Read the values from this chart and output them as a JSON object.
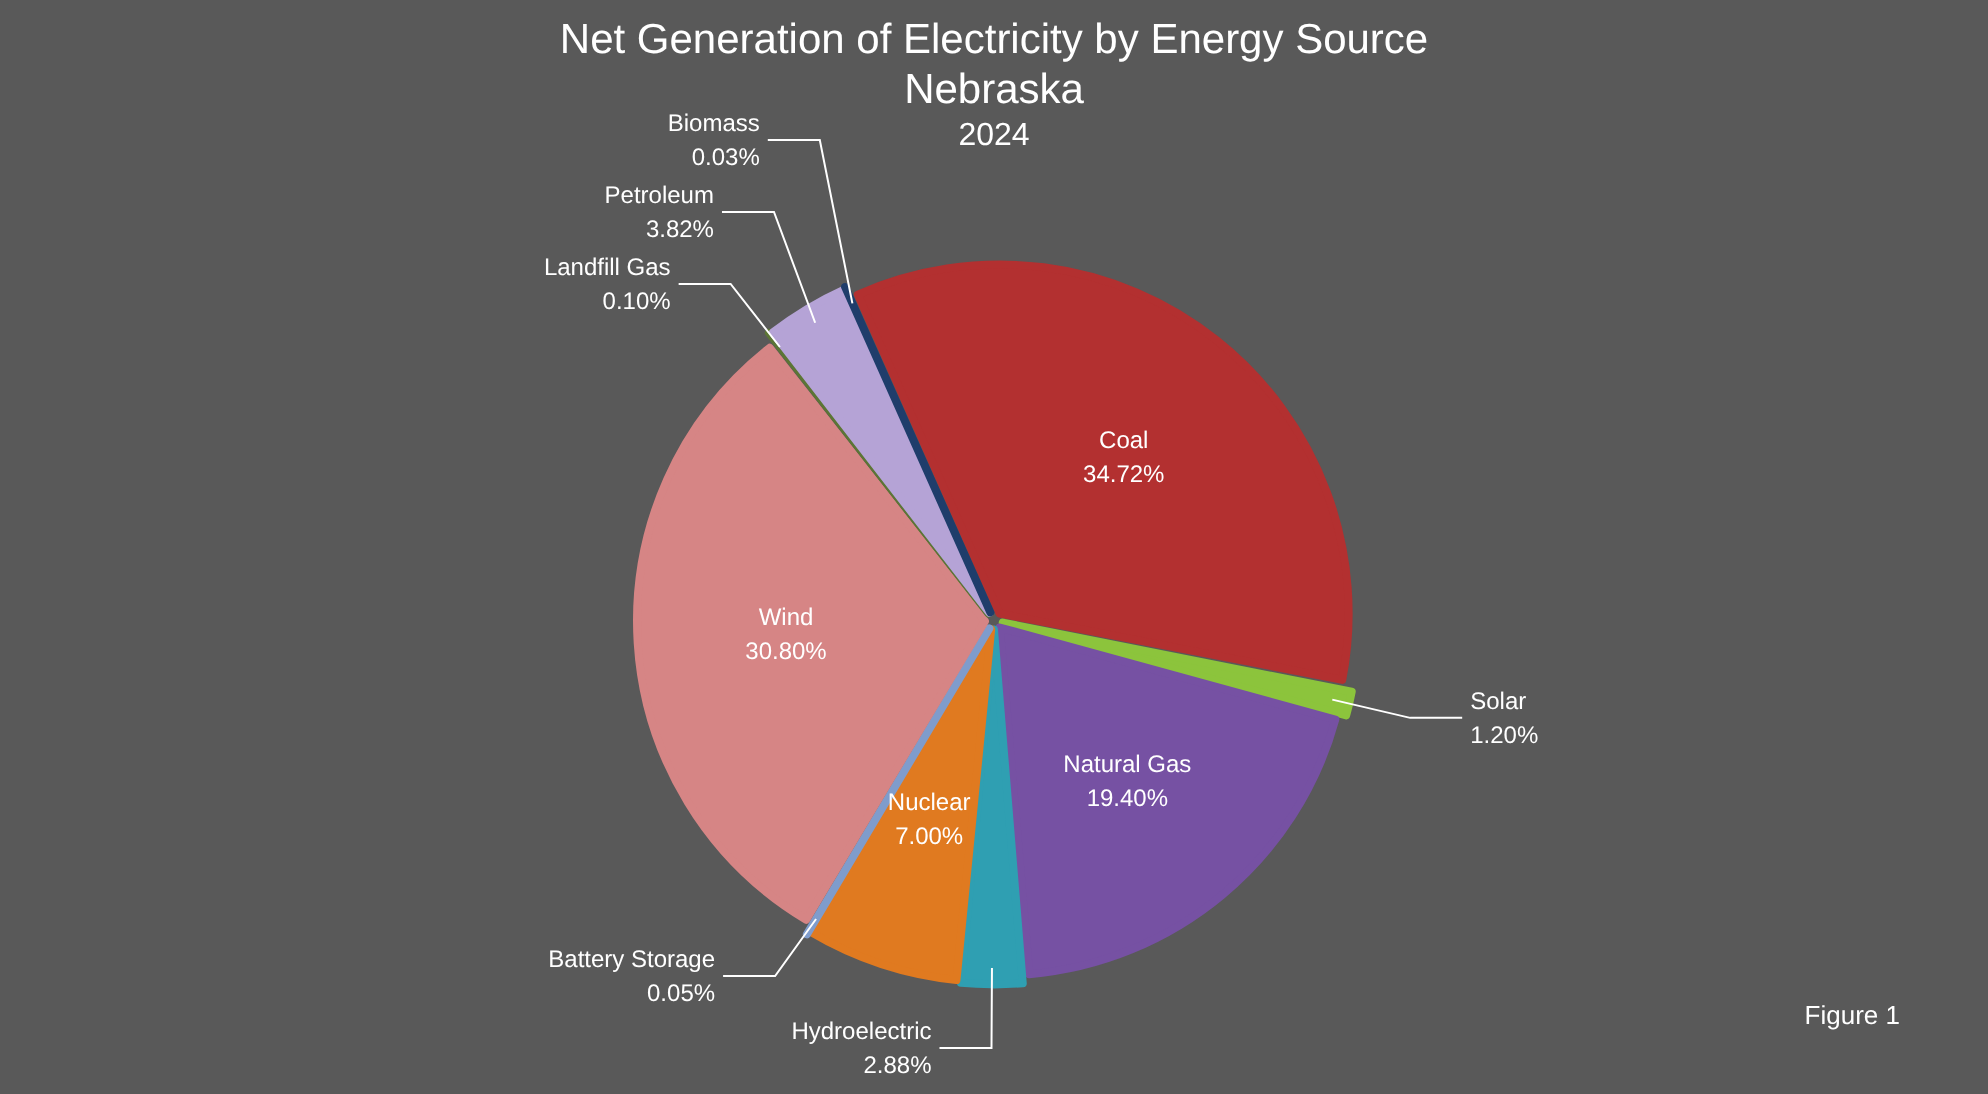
{
  "chart_data": {
    "type": "pie",
    "title": "Net Generation of Electricity by Energy Source\nNebraska",
    "subtitle": "2024",
    "categories": [
      "Coal",
      "Solar",
      "Natural Gas",
      "Hydroelectric",
      "Nuclear",
      "Battery Storage",
      "Wind",
      "Landfill Gas",
      "Petroleum",
      "Biomass"
    ],
    "values": [
      34.72,
      1.2,
      19.4,
      2.88,
      7.0,
      0.05,
      30.8,
      0.1,
      3.82,
      0.03
    ],
    "value_labels": [
      "34.72%",
      "1.20%",
      "19.40%",
      "2.88%",
      "7.00%",
      "0.05%",
      "30.80%",
      "0.10%",
      "3.82%",
      "0.03%"
    ],
    "colors": [
      "#b33030",
      "#8cc43c",
      "#7651a3",
      "#2f9fb2",
      "#e07a20",
      "#7f9ccc",
      "#d68585",
      "#5c7535",
      "#b5a3d6",
      "#1f3d6b"
    ],
    "legend": false,
    "annotations": [
      "Figure 1"
    ]
  }
}
